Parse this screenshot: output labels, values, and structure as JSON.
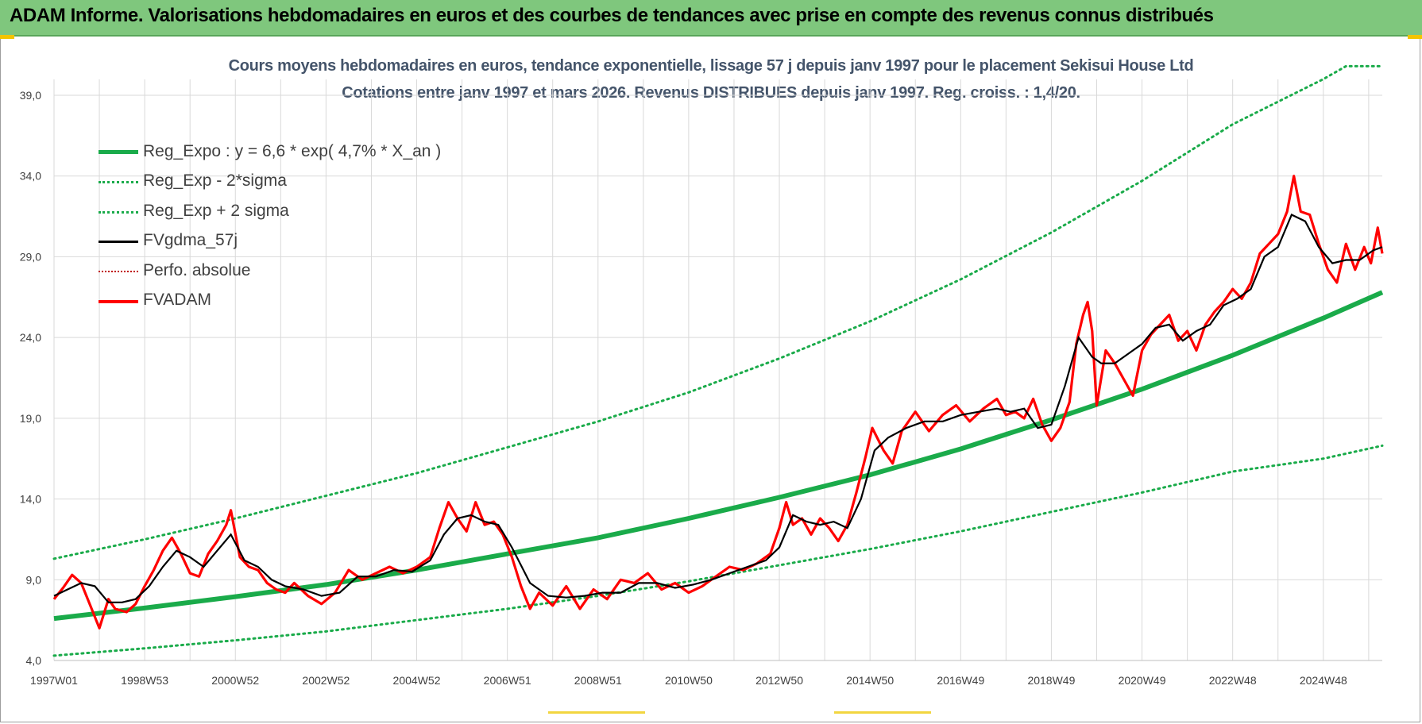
{
  "banner": {
    "title": "ADAM Informe. Valorisations hebdomadaires en euros et des courbes de tendances avec prise en compte des revenus connus distribués"
  },
  "colors": {
    "banner_bg": "#7fc77d",
    "reg_green": "#1aab4a",
    "black": "#000000",
    "red": "#ff0000",
    "dotted_red": "#c00000"
  },
  "chart_data": {
    "type": "line",
    "title_line1": "Cours moyens hebdomadaires en euros, tendance exponentielle, lissage 57 j depuis janv 1997 pour le placement Sekisui House Ltd",
    "title_line2": "Cotations entre janv 1997 et mars 2026. Revenus DISTRIBUES depuis janv 1997.  Reg. croiss. : 1,4/20.",
    "ylim": [
      4.0,
      41.5
    ],
    "y_ticks": [
      "4,0",
      "9,0",
      "14,0",
      "19,0",
      "24,0",
      "29,0",
      "34,0",
      "39,0"
    ],
    "y_tick_values": [
      4,
      9,
      14,
      19,
      24,
      29,
      34,
      39
    ],
    "x_ticks": [
      "1997W01",
      "1998W53",
      "2000W52",
      "2002W52",
      "2004W52",
      "2006W51",
      "2008W51",
      "2010W50",
      "2012W50",
      "2014W50",
      "2016W49",
      "2018W49",
      "2020W49",
      "2022W48",
      "2024W48"
    ],
    "x_tick_years": [
      1997.0,
      1999.0,
      2001.0,
      2003.0,
      2005.0,
      2007.0,
      2009.0,
      2011.0,
      2013.0,
      2015.0,
      2017.0,
      2019.0,
      2021.0,
      2023.0,
      2025.0
    ],
    "xlim": [
      1997.0,
      2026.3
    ],
    "grid": true,
    "legend_position": "top-left",
    "legend": [
      {
        "label": "Reg_Expo : y = 6,6 * exp( 4,7% *  X_an )",
        "style": "solid-green"
      },
      {
        "label": "Reg_Exp - 2*sigma",
        "style": "dotted-green"
      },
      {
        "label": "Reg_Exp + 2 sigma",
        "style": "dotted-green"
      },
      {
        "label": "FVgdma_57j",
        "style": "solid-black"
      },
      {
        "label": "Perfo. absolue",
        "style": "dotted-red"
      },
      {
        "label": "FVADAM",
        "style": "solid-red"
      }
    ],
    "series": [
      {
        "name": "Reg_Expo : y = 6,6 * exp( 4,7% *  X_an )",
        "x": [
          1997,
          1999,
          2001,
          2003,
          2005,
          2007,
          2009,
          2011,
          2013,
          2015,
          2017,
          2019,
          2021,
          2023,
          2025,
          2026.3
        ],
        "values": [
          6.6,
          7.25,
          7.95,
          8.7,
          9.6,
          10.6,
          11.6,
          12.8,
          14.1,
          15.5,
          17.1,
          18.9,
          20.8,
          22.9,
          25.2,
          26.8
        ]
      },
      {
        "name": "Reg_Exp - 2*sigma",
        "x": [
          1997,
          1999,
          2001,
          2003,
          2005,
          2007,
          2009,
          2011,
          2013,
          2015,
          2017,
          2019,
          2021,
          2023,
          2025,
          2026.3
        ],
        "values": [
          4.3,
          4.75,
          5.25,
          5.8,
          6.5,
          7.2,
          8.0,
          8.9,
          9.9,
          10.9,
          12.0,
          13.2,
          14.4,
          15.7,
          16.5,
          17.3
        ]
      },
      {
        "name": "Reg_Exp + 2 sigma",
        "x": [
          1997,
          1999,
          2001,
          2003,
          2005,
          2007,
          2009,
          2011,
          2013,
          2015,
          2017,
          2019,
          2021,
          2023,
          2025,
          2025.5,
          2026.3
        ],
        "values": [
          10.3,
          11.5,
          12.8,
          14.2,
          15.6,
          17.2,
          18.8,
          20.6,
          22.7,
          25.0,
          27.6,
          30.5,
          33.7,
          37.2,
          40.0,
          40.8,
          40.8
        ]
      },
      {
        "name": "FVgdma_57j",
        "x": [
          1997.0,
          1997.3,
          1997.6,
          1997.9,
          1998.2,
          1998.5,
          1998.8,
          1999.1,
          1999.4,
          1999.7,
          2000.0,
          2000.3,
          2000.6,
          2000.9,
          2001.2,
          2001.5,
          2001.8,
          2002.1,
          2002.5,
          2002.9,
          2003.3,
          2003.7,
          2004.1,
          2004.5,
          2004.9,
          2005.3,
          2005.6,
          2005.9,
          2006.2,
          2006.5,
          2006.8,
          2007.1,
          2007.5,
          2007.9,
          2008.3,
          2008.7,
          2009.1,
          2009.5,
          2009.9,
          2010.3,
          2010.7,
          2011.1,
          2011.5,
          2011.9,
          2012.3,
          2012.7,
          2013.0,
          2013.3,
          2013.6,
          2013.9,
          2014.2,
          2014.5,
          2014.8,
          2015.1,
          2015.4,
          2015.8,
          2016.2,
          2016.6,
          2017.0,
          2017.4,
          2017.8,
          2018.1,
          2018.4,
          2018.7,
          2019.0,
          2019.3,
          2019.6,
          2019.9,
          2020.1,
          2020.4,
          2020.7,
          2021.0,
          2021.3,
          2021.6,
          2021.9,
          2022.2,
          2022.5,
          2022.8,
          2023.1,
          2023.4,
          2023.7,
          2024.0,
          2024.3,
          2024.6,
          2024.9,
          2025.2,
          2025.5,
          2025.8,
          2026.1,
          2026.3
        ],
        "values": [
          8.0,
          8.4,
          8.8,
          8.6,
          7.6,
          7.6,
          7.8,
          8.6,
          9.8,
          10.8,
          10.4,
          9.8,
          10.8,
          11.8,
          10.2,
          9.8,
          9.0,
          8.6,
          8.4,
          8.0,
          8.2,
          9.2,
          9.2,
          9.6,
          9.5,
          10.2,
          11.8,
          12.8,
          13.0,
          12.6,
          12.4,
          11.0,
          8.8,
          8.0,
          7.9,
          8.0,
          8.2,
          8.2,
          8.8,
          8.8,
          8.5,
          8.7,
          9.0,
          9.4,
          9.8,
          10.2,
          11.0,
          13.0,
          12.6,
          12.4,
          12.6,
          12.2,
          14.0,
          17.0,
          17.8,
          18.4,
          18.8,
          18.8,
          19.2,
          19.4,
          19.6,
          19.4,
          19.6,
          18.4,
          18.6,
          21.0,
          24.0,
          22.8,
          22.4,
          22.4,
          23.0,
          23.6,
          24.6,
          24.8,
          23.8,
          24.4,
          24.8,
          26.0,
          26.4,
          27.0,
          29.0,
          29.6,
          31.6,
          31.2,
          29.6,
          28.6,
          28.8,
          28.8,
          29.4,
          29.6
        ]
      },
      {
        "name": "FVADAM",
        "x": [
          1997.0,
          1997.2,
          1997.4,
          1997.6,
          1997.8,
          1998.0,
          1998.2,
          1998.35,
          1998.6,
          1998.8,
          1999.0,
          1999.2,
          1999.4,
          1999.6,
          1999.8,
          2000.0,
          2000.2,
          2000.4,
          2000.6,
          2000.8,
          2000.9,
          2001.1,
          2001.3,
          2001.5,
          2001.7,
          2001.9,
          2002.1,
          2002.3,
          2002.6,
          2002.9,
          2003.2,
          2003.5,
          2003.8,
          2004.1,
          2004.4,
          2004.7,
          2005.0,
          2005.3,
          2005.5,
          2005.7,
          2005.9,
          2006.1,
          2006.3,
          2006.5,
          2006.7,
          2006.9,
          2007.1,
          2007.3,
          2007.5,
          2007.7,
          2008.0,
          2008.3,
          2008.6,
          2008.9,
          2009.2,
          2009.5,
          2009.8,
          2010.1,
          2010.4,
          2010.7,
          2011.0,
          2011.3,
          2011.6,
          2011.9,
          2012.2,
          2012.5,
          2012.8,
          2013.0,
          2013.15,
          2013.3,
          2013.5,
          2013.7,
          2013.9,
          2014.1,
          2014.3,
          2014.5,
          2014.7,
          2014.9,
          2015.05,
          2015.3,
          2015.5,
          2015.7,
          2016.0,
          2016.3,
          2016.6,
          2016.9,
          2017.2,
          2017.5,
          2017.8,
          2018.0,
          2018.2,
          2018.4,
          2018.6,
          2018.8,
          2019.0,
          2019.2,
          2019.4,
          2019.55,
          2019.7,
          2019.8,
          2019.9,
          2020.0,
          2020.2,
          2020.4,
          2020.6,
          2020.8,
          2021.0,
          2021.2,
          2021.4,
          2021.6,
          2021.8,
          2022.0,
          2022.2,
          2022.4,
          2022.6,
          2022.8,
          2023.0,
          2023.2,
          2023.4,
          2023.6,
          2023.8,
          2024.0,
          2024.2,
          2024.35,
          2024.5,
          2024.7,
          2024.9,
          2025.1,
          2025.3,
          2025.5,
          2025.7,
          2025.9,
          2026.05,
          2026.2,
          2026.3
        ],
        "values": [
          7.8,
          8.5,
          9.3,
          8.8,
          7.4,
          6.0,
          7.8,
          7.2,
          7.0,
          7.5,
          8.6,
          9.6,
          10.8,
          11.6,
          10.6,
          9.4,
          9.2,
          10.6,
          11.4,
          12.4,
          13.3,
          10.4,
          9.8,
          9.6,
          8.8,
          8.4,
          8.2,
          8.8,
          8.0,
          7.5,
          8.2,
          9.6,
          9.0,
          9.4,
          9.8,
          9.4,
          9.8,
          10.4,
          12.2,
          13.8,
          12.8,
          12.0,
          13.8,
          12.4,
          12.6,
          11.8,
          10.4,
          8.6,
          7.2,
          8.2,
          7.4,
          8.6,
          7.2,
          8.4,
          7.8,
          9.0,
          8.8,
          9.4,
          8.4,
          8.8,
          8.2,
          8.6,
          9.2,
          9.8,
          9.6,
          10.0,
          10.6,
          12.2,
          13.8,
          12.4,
          12.8,
          11.8,
          12.8,
          12.2,
          11.4,
          12.4,
          14.4,
          16.6,
          18.4,
          17.0,
          16.2,
          18.2,
          19.4,
          18.2,
          19.2,
          19.8,
          18.8,
          19.6,
          20.2,
          19.2,
          19.4,
          19.0,
          20.2,
          18.6,
          17.6,
          18.4,
          20.0,
          23.6,
          25.4,
          26.2,
          24.4,
          19.8,
          23.2,
          22.4,
          21.4,
          20.4,
          23.2,
          24.2,
          24.8,
          25.4,
          23.8,
          24.4,
          23.2,
          24.8,
          25.6,
          26.2,
          27.0,
          26.4,
          27.4,
          29.2,
          29.8,
          30.4,
          31.8,
          34.0,
          31.8,
          31.6,
          29.8,
          28.2,
          27.4,
          29.8,
          28.2,
          29.6,
          28.6,
          30.8,
          29.2
        ]
      }
    ]
  }
}
